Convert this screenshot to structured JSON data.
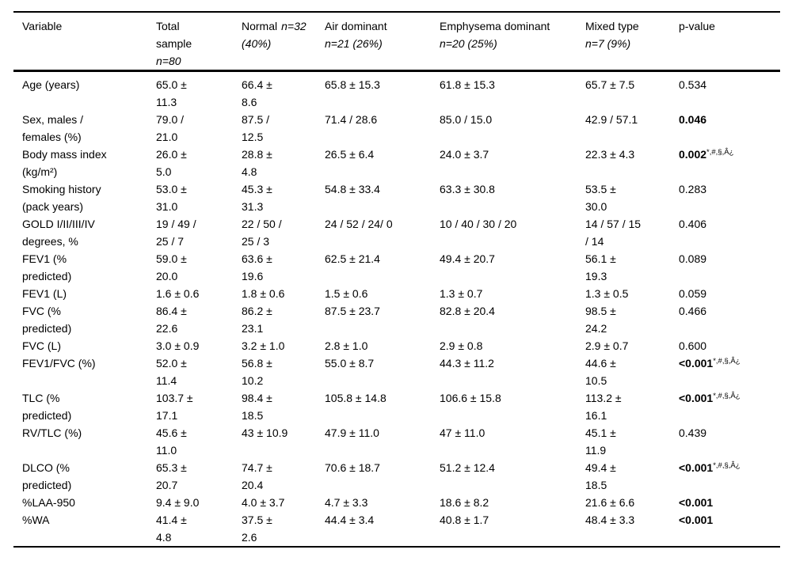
{
  "table": {
    "headers": [
      {
        "pre": "Variable",
        "it1": "",
        "it2": ""
      },
      {
        "pre": "Total\nsample",
        "it1": "",
        "it2": "n=80"
      },
      {
        "pre": "Normal",
        "it1": "n=32",
        "it2": "(40%)"
      },
      {
        "pre": "Air dominant",
        "it1": "",
        "it2": "n=21 (26%)"
      },
      {
        "pre": "Emphysema dominant",
        "it1": "",
        "it2": "n=20 (25%)"
      },
      {
        "pre": "Mixed type",
        "it1": "",
        "it2": "n=7 (9%)"
      },
      {
        "pre": "p-value",
        "it1": "",
        "it2": ""
      }
    ],
    "rows": [
      {
        "variable": "Age (years)",
        "values": [
          "65.0 ±\n11.3",
          "66.4 ±\n8.6",
          "65.8 ± 15.3",
          "61.8 ± 15.3",
          "65.7 ± 7.5"
        ],
        "p": "0.534",
        "p_bold": false,
        "p_sup": ""
      },
      {
        "variable": "Sex, males /\nfemales (%)",
        "values": [
          "79.0 /\n21.0",
          "87.5 /\n12.5",
          "71.4 / 28.6",
          "85.0 / 15.0",
          "42.9 / 57.1"
        ],
        "p": "0.046",
        "p_bold": true,
        "p_sup": ""
      },
      {
        "variable": "Body mass index\n(kg/m²)",
        "values": [
          "26.0 ±\n5.0",
          "28.8 ±\n4.8",
          "26.5 ± 6.4",
          "24.0 ± 3.7",
          "22.3 ± 4.3"
        ],
        "p": "0.002",
        "p_bold": true,
        "p_sup": "*,#,§,Â¿"
      },
      {
        "variable": "Smoking history\n(pack years)",
        "values": [
          "53.0 ±\n31.0",
          "45.3 ±\n31.3",
          "54.8 ± 33.4",
          "63.3 ± 30.8",
          "53.5 ±\n30.0"
        ],
        "p": "0.283",
        "p_bold": false,
        "p_sup": ""
      },
      {
        "variable": "GOLD I/II/III/IV\ndegrees, %",
        "values": [
          "19 / 49 /\n25 / 7",
          "22 / 50 /\n25 / 3",
          "24 / 52 / 24/ 0",
          "10 / 40 / 30 / 20",
          "14 / 57 / 15\n/ 14"
        ],
        "p": "0.406",
        "p_bold": false,
        "p_sup": ""
      },
      {
        "variable": "FEV1 (%\npredicted)",
        "values": [
          "59.0 ±\n20.0",
          "63.6 ±\n19.6",
          "62.5 ± 21.4",
          "49.4 ± 20.7",
          "56.1 ±\n19.3"
        ],
        "p": "0.089",
        "p_bold": false,
        "p_sup": ""
      },
      {
        "variable": "FEV1 (L)",
        "values": [
          "1.6 ± 0.6",
          "1.8 ± 0.6",
          "1.5 ± 0.6",
          "1.3 ± 0.7",
          "1.3 ± 0.5"
        ],
        "p": "0.059",
        "p_bold": false,
        "p_sup": ""
      },
      {
        "variable": "FVC (%\npredicted)",
        "values": [
          "86.4 ±\n22.6",
          "86.2 ±\n23.1",
          "87.5 ± 23.7",
          "82.8 ± 20.4",
          "98.5 ±\n24.2"
        ],
        "p": "0.466",
        "p_bold": false,
        "p_sup": ""
      },
      {
        "variable": "FVC (L)",
        "values": [
          "3.0 ± 0.9",
          "3.2 ± 1.0",
          "2.8 ± 1.0",
          "2.9 ± 0.8",
          "2.9 ± 0.7"
        ],
        "p": "0.600",
        "p_bold": false,
        "p_sup": ""
      },
      {
        "variable": "FEV1/FVC (%)",
        "values": [
          "52.0 ±\n11.4",
          "56.8 ±\n10.2",
          "55.0 ± 8.7",
          "44.3 ± 11.2",
          "44.6 ±\n10.5"
        ],
        "p": "<0.001",
        "p_bold": true,
        "p_sup": "*,#,§,Â¿"
      },
      {
        "variable": "TLC (%\npredicted)",
        "values": [
          "103.7 ±\n17.1",
          "98.4 ±\n18.5",
          "105.8 ± 14.8",
          "106.6 ± 15.8",
          "113.2 ±\n16.1"
        ],
        "p": "<0.001",
        "p_bold": true,
        "p_sup": "*,#,§,Â¿"
      },
      {
        "variable": "RV/TLC (%)",
        "values": [
          "45.6 ±\n11.0",
          "43 ± 10.9",
          "47.9 ± 11.0",
          "47 ± 11.0",
          "45.1 ±\n11.9"
        ],
        "p": "0.439",
        "p_bold": false,
        "p_sup": ""
      },
      {
        "variable": "DLCO (%\npredicted)",
        "values": [
          "65.3 ±\n20.7",
          "74.7 ±\n20.4",
          "70.6 ± 18.7",
          "51.2 ± 12.4",
          "49.4 ±\n18.5"
        ],
        "p": "<0.001",
        "p_bold": true,
        "p_sup": "*,#,§,Â¿"
      },
      {
        "variable": "%LAA-950",
        "values": [
          "9.4 ± 9.0",
          "4.0 ± 3.7",
          "4.7 ± 3.3",
          "18.6 ± 8.2",
          "21.6 ± 6.6"
        ],
        "p": "<0.001",
        "p_bold": true,
        "p_sup": ""
      },
      {
        "variable": "%WA",
        "values": [
          "41.4 ±\n4.8",
          "37.5 ±\n2.6",
          "44.4 ± 3.4",
          "40.8 ± 1.7",
          "48.4 ± 3.3"
        ],
        "p": "<0.001",
        "p_bold": true,
        "p_sup": ""
      }
    ]
  }
}
